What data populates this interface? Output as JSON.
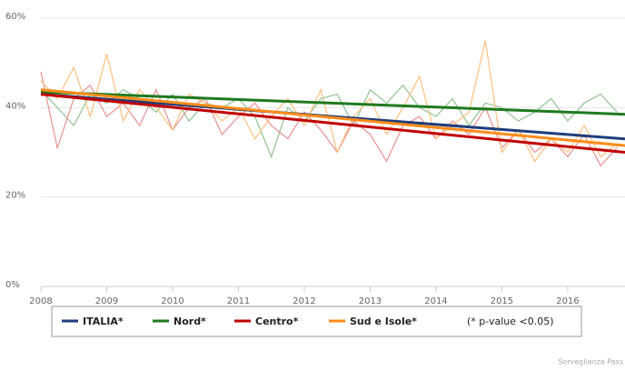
{
  "chart_data": {
    "type": "line",
    "xlim": [
      2008,
      2016.87
    ],
    "xticks": [
      2008,
      2009,
      2010,
      2011,
      2012,
      2013,
      2014,
      2015,
      2016
    ],
    "ylim": [
      0,
      60
    ],
    "yticks": [
      {
        "value": 0,
        "label": "0%"
      },
      {
        "value": 20,
        "label": "20%"
      },
      {
        "value": 40,
        "label": "40%"
      },
      {
        "value": 60,
        "label": "60%"
      }
    ],
    "grid": true,
    "x": [
      2008,
      2016.87
    ],
    "raw_x": [
      2008,
      2008.25,
      2008.5,
      2008.75,
      2009,
      2009.25,
      2009.5,
      2009.75,
      2010,
      2010.25,
      2010.5,
      2010.75,
      2011,
      2011.25,
      2011.5,
      2011.75,
      2012,
      2012.25,
      2012.5,
      2012.75,
      2013,
      2013.25,
      2013.5,
      2013.75,
      2014,
      2014.25,
      2014.5,
      2014.75,
      2015,
      2015.25,
      2015.5,
      2015.75,
      2016,
      2016.25,
      2016.5,
      2016.75
    ],
    "series": [
      {
        "name": "ITALIA*",
        "color": "#1f3d7a",
        "values": [
          43,
          33
        ]
      },
      {
        "name": "Nord*",
        "color": "#1e7a1e",
        "values": [
          43.5,
          38.5
        ],
        "raw_color": "#8fc48f",
        "raw_values": [
          44,
          40,
          36,
          43,
          41,
          44,
          42,
          39,
          43,
          37,
          41,
          40,
          42,
          38,
          29,
          40,
          37,
          42,
          43,
          36,
          44,
          41,
          45,
          40,
          38,
          42,
          36,
          41,
          40,
          37,
          39,
          42,
          37,
          41,
          43,
          39
        ]
      },
      {
        "name": "Centro*",
        "color": "#c00000",
        "values": [
          43,
          30
        ],
        "raw_color": "#e89090",
        "raw_values": [
          48,
          31,
          42,
          45,
          38,
          41,
          36,
          44,
          35,
          40,
          42,
          34,
          38,
          41,
          36,
          33,
          39,
          35,
          30,
          37,
          34,
          28,
          36,
          38,
          33,
          37,
          34,
          40,
          31,
          35,
          30,
          33,
          29,
          34,
          27,
          31
        ]
      },
      {
        "name": "Sud e Isole*",
        "color": "#ff8c1a",
        "values": [
          44,
          31.5
        ],
        "raw_color": "#ffc080",
        "raw_values": [
          46,
          42,
          49,
          38,
          52,
          37,
          44,
          40,
          35,
          43,
          41,
          37,
          40,
          33,
          38,
          42,
          36,
          44,
          30,
          38,
          42,
          34,
          40,
          47,
          33,
          36,
          39,
          55,
          30,
          35,
          28,
          33,
          30,
          36,
          29,
          32
        ]
      }
    ],
    "legend_note": "(* p-value <0.05)",
    "source": "Sorveglianza Pass"
  }
}
